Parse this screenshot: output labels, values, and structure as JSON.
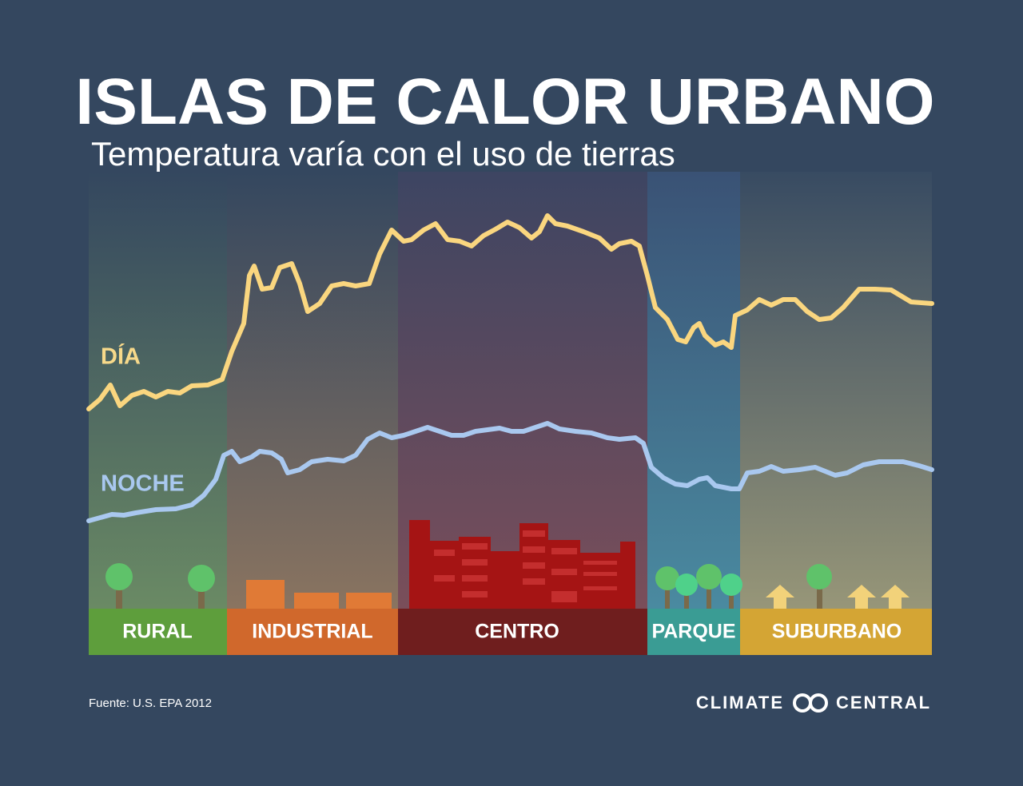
{
  "header": {
    "title": "ISLAS DE CALOR URBANO",
    "subtitle": "Temperatura varía con el uso de tierras"
  },
  "curves": {
    "day": "DÍA",
    "night": "NOCHE"
  },
  "zones": [
    "RURAL",
    "INDUSTRIAL",
    "CENTRO",
    "PARQUE",
    "SUBURBANO"
  ],
  "footer": {
    "source": "Fuente: U.S. EPA 2012",
    "logo_left": "CLIMATE",
    "logo_right": "CENTRAL"
  }
}
